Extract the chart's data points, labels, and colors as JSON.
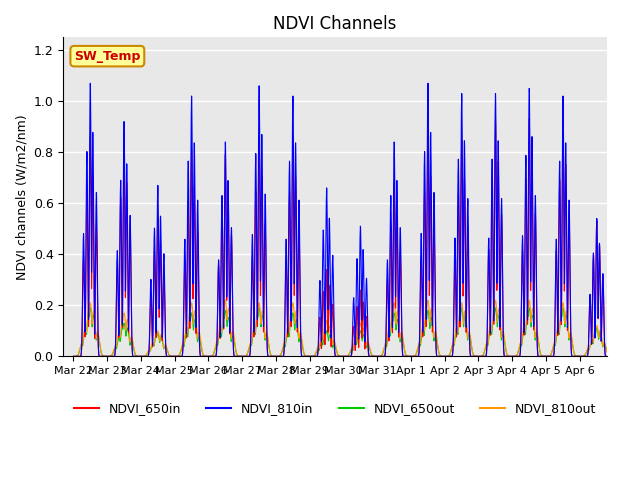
{
  "title": "NDVI Channels",
  "ylabel": "NDVI channels (W/m2/nm)",
  "xlabel": "",
  "ylim": [
    0,
    1.25
  ],
  "background_color": "#e8e8e8",
  "annotation_text": "SW_Temp",
  "annotation_color": "#cc0000",
  "annotation_bg": "#ffff99",
  "annotation_border": "#cc8800",
  "x_tick_labels": [
    "Mar 22",
    "Mar 23",
    "Mar 24",
    "Mar 25",
    "Mar 26",
    "Mar 27",
    "Mar 28",
    "Mar 29",
    "Mar 30",
    "Mar 31",
    "Apr 1",
    "Apr 2",
    "Apr 3",
    "Apr 4",
    "Apr 5",
    "Apr 6"
  ],
  "legend_entries": [
    "NDVI_650in",
    "NDVI_810in",
    "NDVI_650out",
    "NDVI_810out"
  ],
  "legend_colors": [
    "#ff0000",
    "#0000ff",
    "#00cc00",
    "#ff9900"
  ],
  "colors": {
    "650in": "#ff0000",
    "810in": "#0000ff",
    "650out": "#00cc00",
    "810out": "#ff9900"
  },
  "day_peaks_810in": [
    1.07,
    0.92,
    0.67,
    1.02,
    0.84,
    1.06,
    1.02,
    0.66,
    0.51,
    0.84,
    1.07,
    1.03,
    1.03,
    1.05,
    1.02,
    0.54
  ],
  "day_peaks_650in": [
    0.86,
    0.83,
    0.55,
    0.81,
    0.79,
    0.86,
    0.86,
    0.34,
    0.26,
    0.68,
    0.86,
    0.85,
    0.93,
    0.93,
    0.92,
    0.53
  ],
  "day_peaks_650out": [
    0.19,
    0.13,
    0.09,
    0.17,
    0.18,
    0.19,
    0.17,
    0.1,
    0.1,
    0.17,
    0.18,
    0.19,
    0.19,
    0.19,
    0.19,
    0.11
  ],
  "day_peaks_810out": [
    0.21,
    0.17,
    0.1,
    0.21,
    0.22,
    0.21,
    0.21,
    0.14,
    0.13,
    0.21,
    0.22,
    0.21,
    0.22,
    0.22,
    0.21,
    0.12
  ]
}
